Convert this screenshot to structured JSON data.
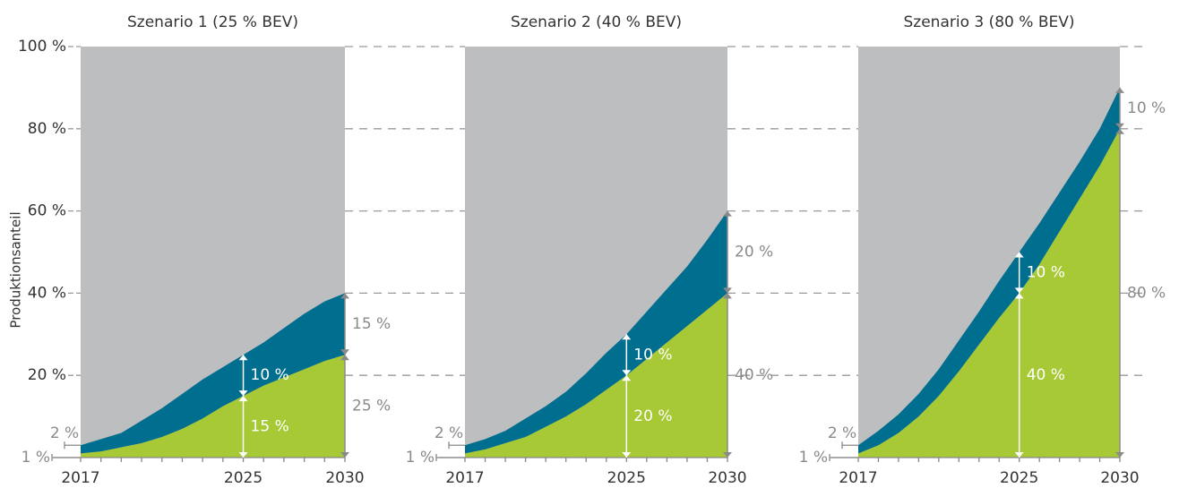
{
  "chart_data": [
    {
      "type": "area",
      "title": "Szenario 1 (25 % BEV)",
      "ylabel": "Produktionsanteil",
      "x": [
        2017,
        2018,
        2019,
        2020,
        2021,
        2022,
        2023,
        2024,
        2025,
        2026,
        2027,
        2028,
        2029,
        2030
      ],
      "xlim": [
        2017,
        2030
      ],
      "xticks": [
        2017,
        2025,
        2030
      ],
      "ylim": [
        0,
        100
      ],
      "yticks": [
        {
          "value": 20,
          "label": "20 %"
        },
        {
          "value": 40,
          "label": "40 %"
        },
        {
          "value": 60,
          "label": "60 %"
        },
        {
          "value": 80,
          "label": "80 %"
        },
        {
          "value": 100,
          "label": "100 %"
        }
      ],
      "remainder_color": "#bcbec0",
      "series": [
        {
          "color": "#a8c936",
          "values": [
            1,
            1.5,
            2.5,
            3.5,
            5,
            7,
            9.5,
            12.5,
            15,
            17.5,
            19.5,
            21.5,
            23.5,
            25
          ],
          "value_labels": [
            "1 %",
            null,
            null,
            null,
            null,
            null,
            null,
            null,
            "15 %",
            null,
            null,
            null,
            null,
            "25 %"
          ]
        },
        {
          "color": "#006e8f",
          "values": [
            2,
            3,
            3.5,
            5.5,
            7,
            8.5,
            9.5,
            9.5,
            10,
            10.5,
            12,
            13.5,
            14.5,
            15
          ],
          "value_labels": [
            "2 %",
            null,
            null,
            null,
            null,
            null,
            null,
            null,
            "10 %",
            null,
            null,
            null,
            null,
            "15 %"
          ]
        }
      ]
    },
    {
      "type": "area",
      "title": "Szenario 2 (40 % BEV)",
      "x": [
        2017,
        2018,
        2019,
        2020,
        2021,
        2022,
        2023,
        2024,
        2025,
        2026,
        2027,
        2028,
        2029,
        2030
      ],
      "xlim": [
        2017,
        2030
      ],
      "xticks": [
        2017,
        2025,
        2030
      ],
      "ylim": [
        0,
        100
      ],
      "yticks": [
        20,
        40,
        60,
        80,
        100
      ],
      "remainder_color": "#bcbec0",
      "series": [
        {
          "color": "#a8c936",
          "values": [
            1,
            2,
            3.5,
            5,
            7.5,
            10,
            13,
            16.5,
            20,
            24,
            28,
            32,
            36,
            40
          ],
          "value_labels": [
            "1 %",
            null,
            null,
            null,
            null,
            null,
            null,
            null,
            "20 %",
            null,
            null,
            null,
            null,
            "40 %"
          ]
        },
        {
          "color": "#006e8f",
          "values": [
            2,
            2.5,
            3,
            4.5,
            5,
            6,
            7.5,
            9,
            10,
            11.5,
            13,
            14.5,
            17,
            20
          ],
          "value_labels": [
            "2 %",
            null,
            null,
            null,
            null,
            null,
            null,
            null,
            "10 %",
            null,
            null,
            null,
            null,
            "20 %"
          ]
        }
      ]
    },
    {
      "type": "area",
      "title": "Szenario 3 (80 % BEV)",
      "x": [
        2017,
        2018,
        2019,
        2020,
        2021,
        2022,
        2023,
        2024,
        2025,
        2026,
        2027,
        2028,
        2029,
        2030
      ],
      "xlim": [
        2017,
        2030
      ],
      "xticks": [
        2017,
        2025,
        2030
      ],
      "ylim": [
        0,
        100
      ],
      "yticks": [
        20,
        40,
        60,
        80,
        100
      ],
      "remainder_color": "#bcbec0",
      "series": [
        {
          "color": "#a8c936",
          "values": [
            1,
            3,
            6,
            10,
            15,
            21,
            27.5,
            34,
            40,
            47,
            55,
            63,
            71,
            80
          ],
          "value_labels": [
            "1 %",
            null,
            null,
            null,
            null,
            null,
            null,
            null,
            "40 %",
            null,
            null,
            null,
            null,
            "80 %"
          ]
        },
        {
          "color": "#006e8f",
          "values": [
            2,
            3.5,
            4.5,
            5.5,
            6.5,
            7.5,
            8,
            9,
            10,
            10,
            9.5,
            9,
            9,
            10
          ],
          "value_labels": [
            "2 %",
            null,
            null,
            null,
            null,
            null,
            null,
            null,
            "10 %",
            null,
            null,
            null,
            null,
            "10 %"
          ]
        }
      ]
    }
  ]
}
